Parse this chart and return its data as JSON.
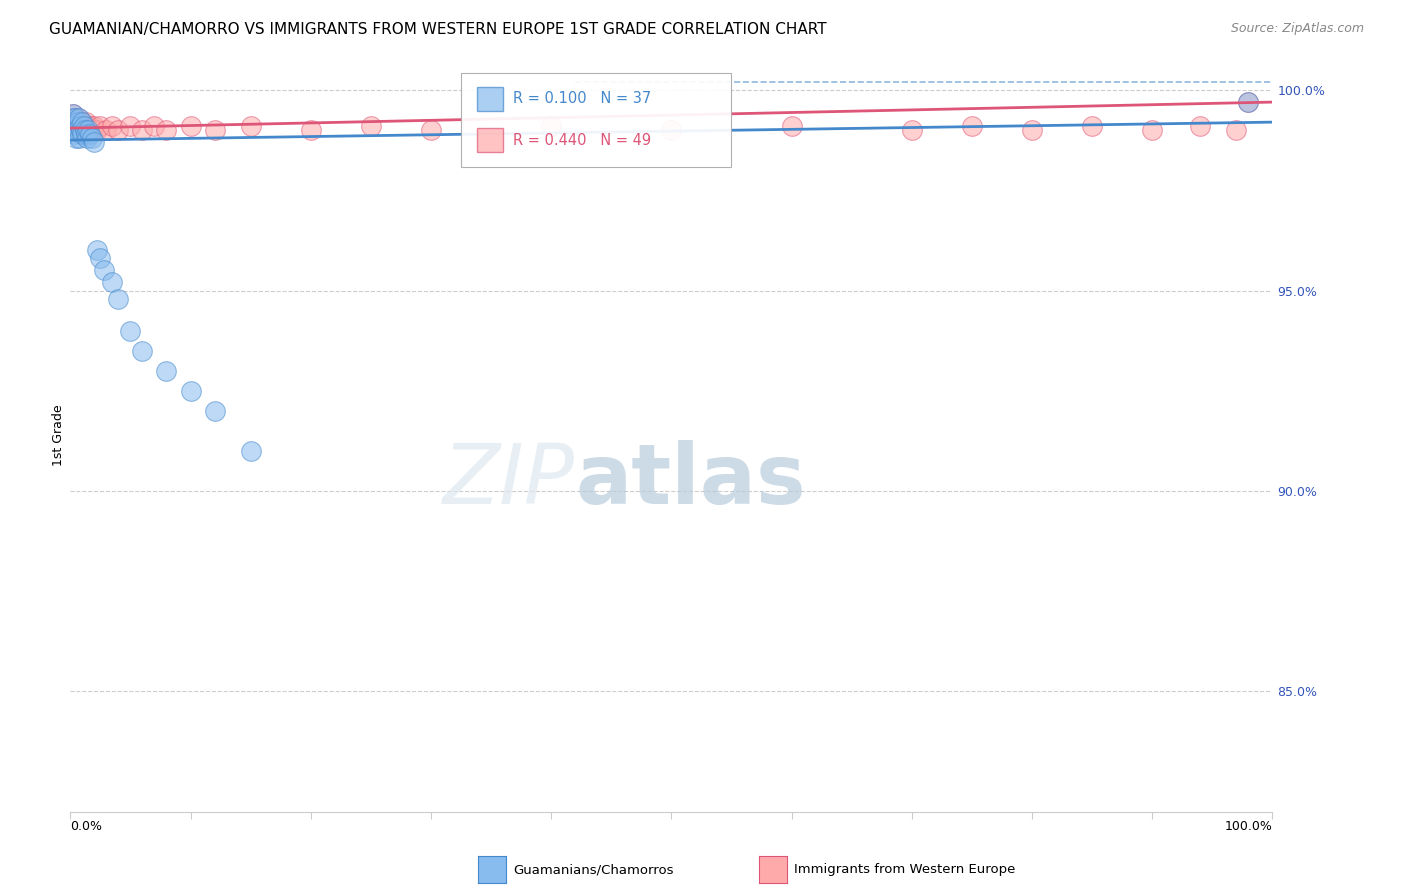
{
  "title": "GUAMANIAN/CHAMORRO VS IMMIGRANTS FROM WESTERN EUROPE 1ST GRADE CORRELATION CHART",
  "source": "Source: ZipAtlas.com",
  "ylabel": "1st Grade",
  "legend_label_blue": "Guamanians/Chamorros",
  "legend_label_pink": "Immigrants from Western Europe",
  "r_blue": 0.1,
  "n_blue": 37,
  "r_pink": 0.44,
  "n_pink": 49,
  "blue_color": "#88bbee",
  "pink_color": "#ffaaaa",
  "trendline_blue_color": "#4488cc",
  "trendline_pink_color": "#dd5577",
  "background_color": "#ffffff",
  "blue_points_x": [
    0.001,
    0.002,
    0.002,
    0.003,
    0.003,
    0.004,
    0.004,
    0.005,
    0.005,
    0.006,
    0.006,
    0.007,
    0.007,
    0.008,
    0.009,
    0.01,
    0.01,
    0.011,
    0.012,
    0.013,
    0.014,
    0.015,
    0.016,
    0.018,
    0.02,
    0.022,
    0.025,
    0.028,
    0.035,
    0.04,
    0.05,
    0.06,
    0.08,
    0.1,
    0.12,
    0.15,
    0.98
  ],
  "blue_points_y": [
    0.993,
    0.991,
    0.994,
    0.99,
    0.992,
    0.989,
    0.993,
    0.991,
    0.988,
    0.992,
    0.99,
    0.993,
    0.988,
    0.991,
    0.99,
    0.989,
    0.992,
    0.991,
    0.99,
    0.989,
    0.988,
    0.99,
    0.989,
    0.988,
    0.987,
    0.96,
    0.958,
    0.955,
    0.952,
    0.948,
    0.94,
    0.935,
    0.93,
    0.925,
    0.92,
    0.91,
    0.997
  ],
  "pink_points_x": [
    0.001,
    0.002,
    0.002,
    0.003,
    0.003,
    0.004,
    0.004,
    0.005,
    0.005,
    0.006,
    0.006,
    0.007,
    0.008,
    0.009,
    0.01,
    0.011,
    0.012,
    0.013,
    0.014,
    0.015,
    0.016,
    0.018,
    0.02,
    0.022,
    0.025,
    0.03,
    0.035,
    0.04,
    0.05,
    0.06,
    0.07,
    0.08,
    0.1,
    0.12,
    0.15,
    0.2,
    0.25,
    0.3,
    0.4,
    0.5,
    0.6,
    0.7,
    0.75,
    0.8,
    0.85,
    0.9,
    0.94,
    0.97,
    0.98
  ],
  "pink_points_y": [
    0.993,
    0.994,
    0.991,
    0.993,
    0.992,
    0.99,
    0.993,
    0.992,
    0.991,
    0.993,
    0.99,
    0.992,
    0.991,
    0.99,
    0.992,
    0.991,
    0.99,
    0.992,
    0.991,
    0.99,
    0.991,
    0.99,
    0.991,
    0.99,
    0.991,
    0.99,
    0.991,
    0.99,
    0.991,
    0.99,
    0.991,
    0.99,
    0.991,
    0.99,
    0.991,
    0.99,
    0.991,
    0.99,
    0.991,
    0.99,
    0.991,
    0.99,
    0.991,
    0.99,
    0.991,
    0.99,
    0.991,
    0.99,
    0.997
  ],
  "xlim": [
    0.0,
    1.0
  ],
  "ylim": [
    0.82,
    1.008
  ],
  "ytick_values": [
    1.0,
    0.95,
    0.9,
    0.85
  ],
  "ytick_labels": [
    "100.0%",
    "95.0%",
    "90.0%",
    "85.0%"
  ],
  "title_fontsize": 11,
  "axis_label_fontsize": 9,
  "tick_fontsize": 9,
  "source_fontsize": 9
}
